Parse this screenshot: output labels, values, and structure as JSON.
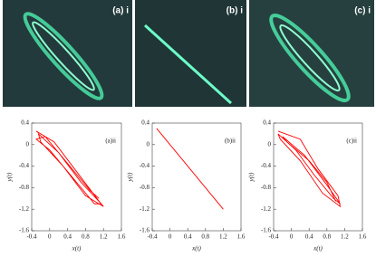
{
  "photos": [
    {
      "label": "(a) i"
    },
    {
      "label": "(b) i"
    },
    {
      "label": "(c) i"
    }
  ],
  "chart_data": [
    {
      "type": "line",
      "label": "(a)ii",
      "xlabel": "x(t)",
      "ylabel": "y(t)",
      "color": "#ff0000",
      "xlim": [
        -0.4,
        1.6
      ],
      "ylim": [
        -1.6,
        0.4
      ],
      "xticks": [
        -0.4,
        0,
        0.4,
        0.8,
        1.2,
        1.6
      ],
      "yticks": [
        0.4,
        0,
        -0.4,
        -0.8,
        -1.2,
        -1.6
      ],
      "x": [
        -0.3,
        0.1,
        0.6,
        1.1,
        1.2,
        0.8,
        0.3,
        -0.2,
        -0.25,
        0.2,
        0.7,
        1.15,
        1.0,
        0.5,
        0.0,
        -0.3,
        -0.1,
        0.4,
        0.9,
        1.1
      ],
      "y": [
        0.25,
        0.05,
        -0.5,
        -1.05,
        -1.15,
        -0.95,
        -0.4,
        0.05,
        0.2,
        -0.15,
        -0.7,
        -1.1,
        -1.1,
        -0.6,
        -0.1,
        0.1,
        0.15,
        -0.35,
        -0.85,
        -1.0
      ]
    },
    {
      "type": "line",
      "label": "(b)ii",
      "xlabel": "x(t)",
      "ylabel": "y(t)",
      "color": "#ff0000",
      "xlim": [
        -0.4,
        1.6
      ],
      "ylim": [
        -1.6,
        0.4
      ],
      "xticks": [
        -0.4,
        0,
        0.4,
        0.8,
        1.2,
        1.6
      ],
      "yticks": [
        0.4,
        0,
        -0.4,
        -0.8,
        -1.2,
        -1.6
      ],
      "x": [
        -0.3,
        1.2
      ],
      "y": [
        0.3,
        -1.2
      ]
    },
    {
      "type": "line",
      "label": "(c)ii",
      "xlabel": "x(t)",
      "ylabel": "y(t)",
      "color": "#ff0000",
      "xlim": [
        -0.4,
        1.6
      ],
      "ylim": [
        -1.6,
        0.4
      ],
      "xticks": [
        -0.4,
        0,
        0.4,
        0.8,
        1.2,
        1.6
      ],
      "yticks": [
        0.4,
        0,
        -0.4,
        -0.8,
        -1.2,
        -1.6
      ],
      "x": [
        -0.3,
        0.2,
        0.6,
        1.05,
        1.1,
        0.7,
        0.2,
        -0.25,
        -0.3,
        0.1,
        0.5,
        0.95,
        1.1,
        0.8,
        0.3,
        -0.2,
        -0.1,
        0.4,
        0.8,
        1.0
      ],
      "y": [
        0.25,
        0.1,
        -0.45,
        -0.95,
        -1.15,
        -0.9,
        -0.3,
        0.1,
        0.2,
        -0.1,
        -0.55,
        -1.0,
        -1.1,
        -0.75,
        -0.2,
        0.15,
        0.05,
        -0.3,
        -0.7,
        -1.05
      ]
    }
  ]
}
